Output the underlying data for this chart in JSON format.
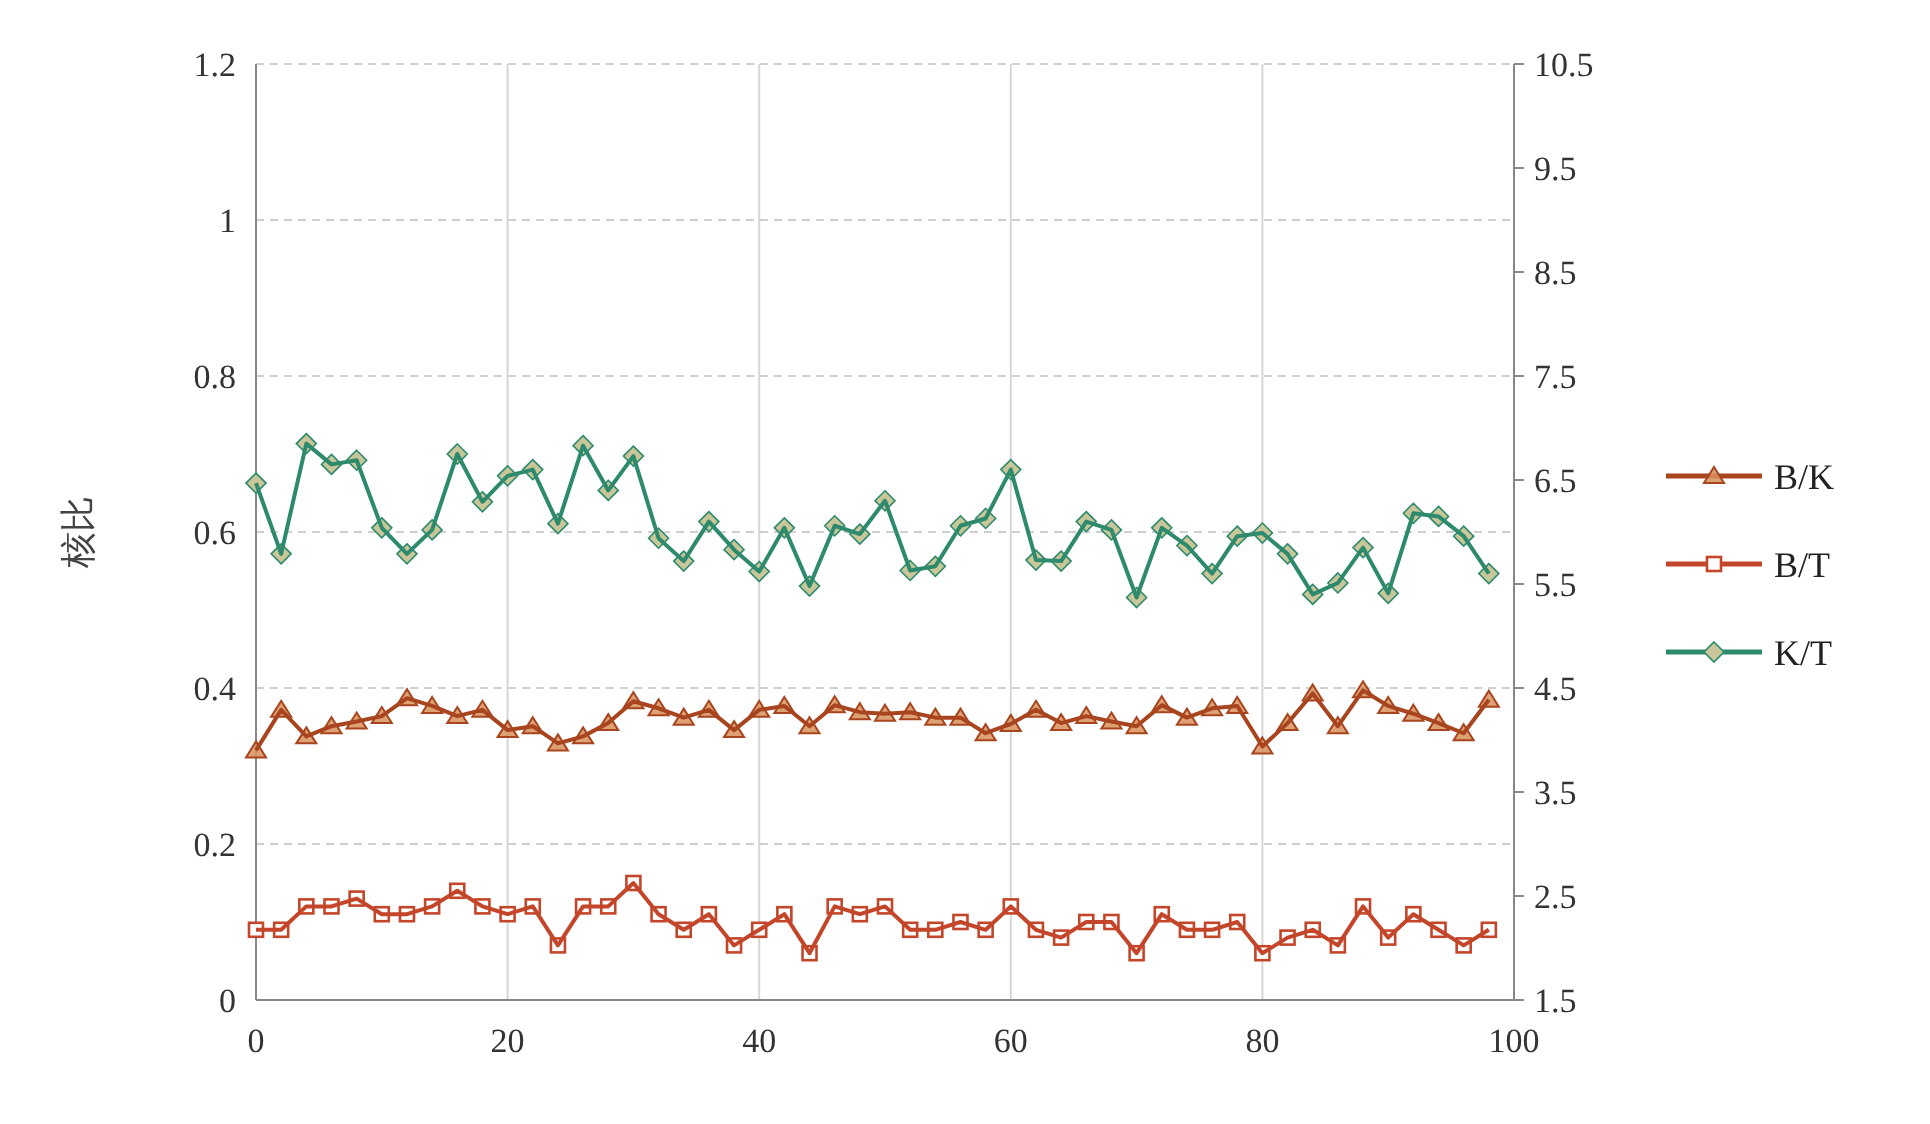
{
  "chart_data": {
    "type": "line",
    "ylabel": "核比",
    "x": [
      0,
      2,
      4,
      6,
      8,
      10,
      12,
      14,
      16,
      18,
      20,
      22,
      24,
      26,
      28,
      30,
      32,
      34,
      36,
      38,
      40,
      42,
      44,
      46,
      48,
      50,
      52,
      54,
      56,
      58,
      60,
      62,
      64,
      66,
      68,
      70,
      72,
      74,
      76,
      78,
      80,
      82,
      84,
      86,
      88,
      90,
      92,
      94,
      96,
      98
    ],
    "series": [
      {
        "name": "B/K",
        "color": "#a8451f",
        "marker": "triangle",
        "values": [
          0.32,
          0.372,
          0.338,
          0.351,
          0.357,
          0.364,
          0.387,
          0.377,
          0.364,
          0.372,
          0.346,
          0.351,
          0.329,
          0.338,
          0.355,
          0.383,
          0.374,
          0.362,
          0.372,
          0.346,
          0.372,
          0.377,
          0.351,
          0.378,
          0.369,
          0.367,
          0.369,
          0.362,
          0.362,
          0.342,
          0.354,
          0.372,
          0.355,
          0.364,
          0.357,
          0.351,
          0.378,
          0.362,
          0.374,
          0.377,
          0.325,
          0.355,
          0.393,
          0.351,
          0.397,
          0.377,
          0.367,
          0.355,
          0.342,
          0.385
        ]
      },
      {
        "name": "B/T",
        "color": "#c4462a",
        "marker": "square",
        "values": [
          0.09,
          0.09,
          0.12,
          0.12,
          0.13,
          0.11,
          0.11,
          0.12,
          0.14,
          0.12,
          0.11,
          0.12,
          0.07,
          0.12,
          0.12,
          0.15,
          0.11,
          0.09,
          0.11,
          0.07,
          0.09,
          0.11,
          0.06,
          0.12,
          0.11,
          0.12,
          0.09,
          0.09,
          0.1,
          0.09,
          0.12,
          0.09,
          0.08,
          0.1,
          0.1,
          0.06,
          0.11,
          0.09,
          0.09,
          0.1,
          0.06,
          0.08,
          0.09,
          0.07,
          0.12,
          0.08,
          0.11,
          0.09,
          0.07,
          0.09
        ]
      },
      {
        "name": "K/T",
        "color": "#2e8a6c",
        "marker": "diamond",
        "axis": "y2",
        "values": [
          6.47,
          5.79,
          6.85,
          6.65,
          6.69,
          6.04,
          5.79,
          6.02,
          6.75,
          6.29,
          6.54,
          6.6,
          6.08,
          6.83,
          6.4,
          6.73,
          5.94,
          5.72,
          6.1,
          5.83,
          5.62,
          6.04,
          5.48,
          6.06,
          5.98,
          6.3,
          5.63,
          5.67,
          6.06,
          6.13,
          6.6,
          5.73,
          5.72,
          6.1,
          6.02,
          5.37,
          6.04,
          5.87,
          5.6,
          5.96,
          5.99,
          5.79,
          5.4,
          5.51,
          5.85,
          5.41,
          6.18,
          6.15,
          5.96,
          5.6
        ]
      }
    ],
    "xlim": [
      0,
      100
    ],
    "xticks": [
      0,
      20,
      40,
      60,
      80,
      100
    ],
    "ylim": [
      0,
      1.2
    ],
    "yticks": [
      0,
      0.2,
      0.4,
      0.6,
      0.8,
      1,
      1.2
    ],
    "y2lim": [
      1.5,
      10.5
    ],
    "y2ticks": [
      1.5,
      2.5,
      3.5,
      4.5,
      5.5,
      6.5,
      7.5,
      8.5,
      9.5,
      10.5
    ],
    "grid": true,
    "legend": "right"
  }
}
